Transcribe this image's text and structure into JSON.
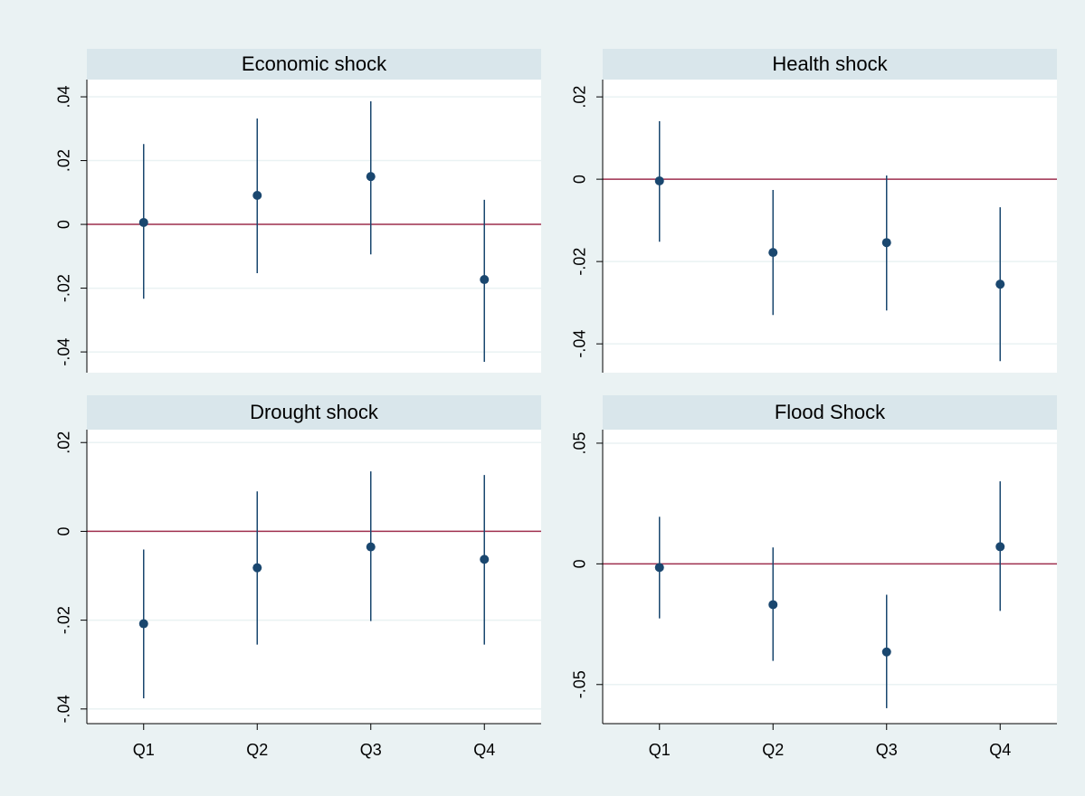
{
  "chart_data": [
    {
      "type": "coef",
      "title": "Economic shock",
      "categories": [
        null,
        null,
        null,
        null
      ],
      "values": [
        0.0006,
        0.0091,
        0.015,
        -0.0173
      ],
      "ci_low": [
        -0.0233,
        -0.0153,
        -0.0094,
        -0.0431
      ],
      "ci_high": [
        0.0252,
        0.0332,
        0.0386,
        0.0077
      ],
      "ylim": [
        -0.0465,
        0.0454
      ],
      "yticks": [
        {
          "value": -0.04,
          "label": "-.04"
        },
        {
          "value": -0.02,
          "label": "-.02"
        },
        0,
        {
          "value": 0.02,
          "label": ".02"
        },
        {
          "value": 0.04,
          "label": ".04"
        }
      ],
      "yline": 0,
      "color": "#1a476f",
      "yline_color": "#a0304f",
      "grid": true
    },
    {
      "type": "coef",
      "title": "Health shock",
      "categories": [
        null,
        null,
        null,
        null
      ],
      "values": [
        -0.0004,
        -0.0178,
        -0.0154,
        -0.0255
      ],
      "ci_low": [
        -0.0152,
        -0.033,
        -0.0319,
        -0.0442
      ],
      "ci_high": [
        0.0141,
        -0.0026,
        0.0009,
        -0.0068
      ],
      "ylim": [
        -0.047,
        0.0242
      ],
      "yticks": [
        {
          "value": -0.04,
          "label": "-.04"
        },
        {
          "value": -0.02,
          "label": "-.02"
        },
        0,
        {
          "value": 0.02,
          "label": ".02"
        }
      ],
      "yline": 0,
      "color": "#1a476f",
      "yline_color": "#a0304f",
      "grid": true
    },
    {
      "type": "coef",
      "title": "Drought shock",
      "categories": [
        "Q1",
        "Q2",
        "Q3",
        "Q4"
      ],
      "values": [
        -0.0208,
        -0.0082,
        -0.0035,
        -0.0063
      ],
      "ci_low": [
        -0.0376,
        -0.0255,
        -0.0202,
        -0.0255
      ],
      "ci_high": [
        -0.0041,
        0.009,
        0.0135,
        0.0127
      ],
      "ylim": [
        -0.0433,
        0.0229
      ],
      "yticks": [
        {
          "value": -0.04,
          "label": "-.04"
        },
        {
          "value": -0.02,
          "label": "-.02"
        },
        0,
        {
          "value": 0.02,
          "label": ".02"
        }
      ],
      "yline": 0,
      "color": "#1a476f",
      "yline_color": "#a0304f",
      "grid": true
    },
    {
      "type": "coef",
      "title": "Flood Shock",
      "categories": [
        "Q1",
        "Q2",
        "Q3",
        "Q4"
      ],
      "values": [
        -0.0015,
        -0.0169,
        -0.0365,
        0.0071
      ],
      "ci_low": [
        -0.0226,
        -0.0402,
        -0.0598,
        -0.0195
      ],
      "ci_high": [
        0.0195,
        0.0068,
        -0.0128,
        0.0342
      ],
      "ylim": [
        -0.0662,
        0.0556
      ],
      "yticks": [
        {
          "value": -0.05,
          "label": "-.05"
        },
        0,
        {
          "value": 0.05,
          "label": ".05"
        }
      ],
      "yline": 0,
      "color": "#1a476f",
      "yline_color": "#a0304f",
      "grid": true
    }
  ]
}
